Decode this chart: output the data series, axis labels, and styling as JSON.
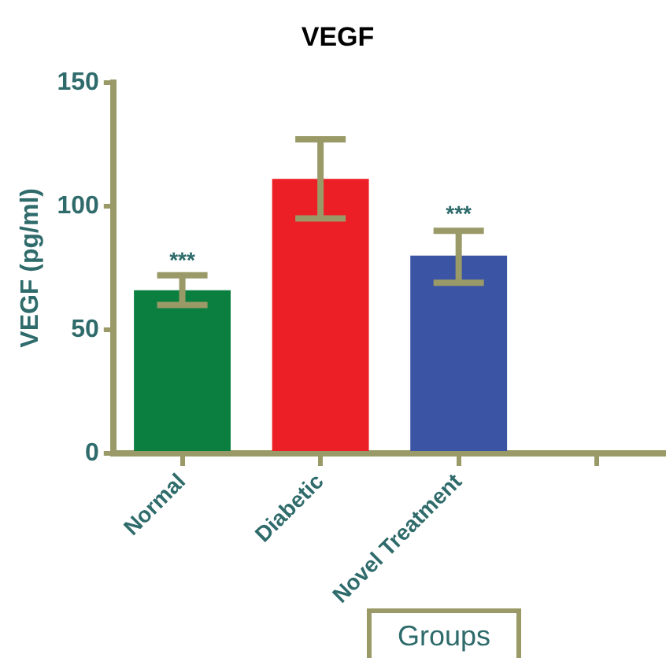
{
  "chart_data": {
    "type": "bar",
    "title": "VEGF",
    "xlabel": "Groups",
    "ylabel": "VEGF (pg/ml)",
    "categories": [
      "Normal",
      "Diabetic",
      "Novel Treatment",
      null
    ],
    "values": [
      66,
      111,
      80,
      null
    ],
    "colors": [
      "#0b7f3f",
      "#ec1f26",
      "#3b54a4",
      "#999999"
    ],
    "errors": [
      [
        60,
        72
      ],
      [
        95,
        127
      ],
      [
        69,
        90
      ],
      null
    ],
    "annotations": [
      {
        "text": "***",
        "x": "Normal",
        "y": 73
      },
      {
        "text": "***",
        "x": "Novel Treatment",
        "y": 92
      }
    ],
    "ylim": [
      0,
      150
    ],
    "yticks": [
      0,
      50,
      100,
      150
    ],
    "grid": false,
    "legend": false
  }
}
